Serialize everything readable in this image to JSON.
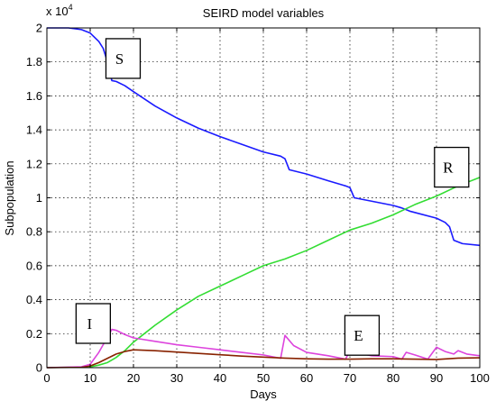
{
  "chart_data": {
    "type": "line",
    "title": "SEIRD model variables",
    "xlabel": "Days",
    "ylabel": "Subpopulation",
    "y_multiplier": {
      "base": "x 10",
      "exponent": "4"
    },
    "xlim": [
      0,
      100
    ],
    "ylim": [
      0,
      20000
    ],
    "x_ticks": [
      0,
      10,
      20,
      30,
      40,
      50,
      60,
      70,
      80,
      90,
      100
    ],
    "y_ticks": [
      0,
      2000,
      4000,
      6000,
      8000,
      10000,
      12000,
      14000,
      16000,
      18000,
      20000
    ],
    "x_tick_labels": [
      "0",
      "10",
      "20",
      "30",
      "40",
      "50",
      "60",
      "70",
      "80",
      "90",
      "100"
    ],
    "y_tick_labels": [
      "0",
      "0.2",
      "0.4",
      "0.6",
      "0.8",
      "1",
      "1.2",
      "1.4",
      "1.6",
      "1.8",
      "2"
    ],
    "grid": "dotted",
    "series": [
      {
        "key": "S",
        "color": "#1a1aff",
        "points": [
          [
            0,
            20000
          ],
          [
            5,
            20000
          ],
          [
            8,
            19900
          ],
          [
            10,
            19700
          ],
          [
            12,
            19200
          ],
          [
            13,
            18800
          ],
          [
            14,
            18000
          ],
          [
            15,
            16900
          ],
          [
            16,
            16850
          ],
          [
            18,
            16600
          ],
          [
            20,
            16250
          ],
          [
            25,
            15400
          ],
          [
            30,
            14700
          ],
          [
            35,
            14100
          ],
          [
            40,
            13600
          ],
          [
            45,
            13150
          ],
          [
            50,
            12700
          ],
          [
            54,
            12450
          ],
          [
            55,
            12300
          ],
          [
            56,
            11650
          ],
          [
            60,
            11400
          ],
          [
            65,
            11000
          ],
          [
            69,
            10700
          ],
          [
            70,
            10600
          ],
          [
            71,
            10000
          ],
          [
            75,
            9800
          ],
          [
            80,
            9550
          ],
          [
            82,
            9400
          ],
          [
            84,
            9200
          ],
          [
            90,
            8800
          ],
          [
            92,
            8550
          ],
          [
            93,
            8300
          ],
          [
            94,
            7500
          ],
          [
            96,
            7300
          ],
          [
            100,
            7200
          ]
        ]
      },
      {
        "key": "R",
        "color": "#33dd33",
        "points": [
          [
            0,
            0
          ],
          [
            10,
            50
          ],
          [
            12,
            150
          ],
          [
            14,
            300
          ],
          [
            16,
            600
          ],
          [
            18,
            1000
          ],
          [
            20,
            1500
          ],
          [
            22,
            1900
          ],
          [
            25,
            2500
          ],
          [
            30,
            3400
          ],
          [
            35,
            4200
          ],
          [
            40,
            4800
          ],
          [
            45,
            5400
          ],
          [
            50,
            6000
          ],
          [
            55,
            6400
          ],
          [
            60,
            6900
          ],
          [
            65,
            7500
          ],
          [
            70,
            8100
          ],
          [
            75,
            8500
          ],
          [
            80,
            9000
          ],
          [
            85,
            9600
          ],
          [
            90,
            10100
          ],
          [
            95,
            10700
          ],
          [
            100,
            11200
          ]
        ]
      },
      {
        "key": "I",
        "color": "#dd44dd",
        "points": [
          [
            0,
            0
          ],
          [
            8,
            50
          ],
          [
            10,
            200
          ],
          [
            12,
            900
          ],
          [
            14,
            1800
          ],
          [
            15,
            2250
          ],
          [
            16,
            2200
          ],
          [
            18,
            1950
          ],
          [
            20,
            1750
          ],
          [
            25,
            1550
          ],
          [
            30,
            1350
          ],
          [
            35,
            1200
          ],
          [
            40,
            1050
          ],
          [
            45,
            900
          ],
          [
            50,
            750
          ],
          [
            54,
            550
          ],
          [
            55,
            1900
          ],
          [
            57,
            1300
          ],
          [
            60,
            900
          ],
          [
            65,
            700
          ],
          [
            69,
            500
          ],
          [
            70,
            1000
          ],
          [
            72,
            850
          ],
          [
            75,
            700
          ],
          [
            80,
            650
          ],
          [
            82,
            500
          ],
          [
            83,
            900
          ],
          [
            85,
            750
          ],
          [
            88,
            500
          ],
          [
            90,
            1200
          ],
          [
            92,
            950
          ],
          [
            94,
            800
          ],
          [
            95,
            1000
          ],
          [
            97,
            800
          ],
          [
            100,
            700
          ]
        ]
      },
      {
        "key": "E",
        "color": "#882200",
        "points": [
          [
            0,
            0
          ],
          [
            8,
            20
          ],
          [
            10,
            100
          ],
          [
            12,
            300
          ],
          [
            14,
            550
          ],
          [
            16,
            800
          ],
          [
            18,
            950
          ],
          [
            20,
            1050
          ],
          [
            25,
            1000
          ],
          [
            30,
            920
          ],
          [
            35,
            840
          ],
          [
            40,
            760
          ],
          [
            45,
            680
          ],
          [
            50,
            620
          ],
          [
            55,
            560
          ],
          [
            60,
            520
          ],
          [
            65,
            500
          ],
          [
            70,
            500
          ],
          [
            75,
            520
          ],
          [
            80,
            520
          ],
          [
            85,
            500
          ],
          [
            90,
            480
          ],
          [
            95,
            560
          ],
          [
            100,
            580
          ]
        ]
      }
    ],
    "annotations": [
      {
        "text": "S",
        "x": 17.6,
        "y": 18200
      },
      {
        "text": "R",
        "x": 93.5,
        "y": 11800
      },
      {
        "text": "I",
        "x": 10.7,
        "y": 2600
      },
      {
        "text": "E",
        "x": 72.8,
        "y": 1900
      }
    ]
  }
}
